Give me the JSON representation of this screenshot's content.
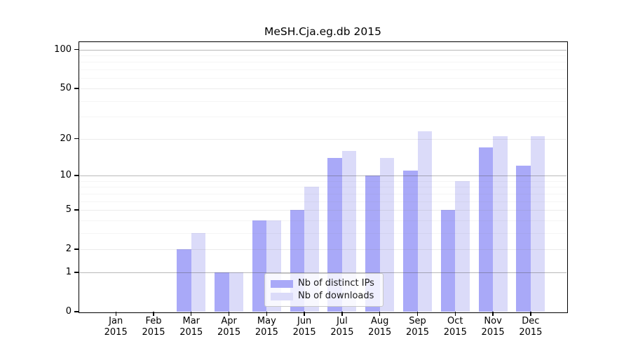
{
  "chart_data": {
    "type": "bar",
    "title": "MeSH.Cja.eg.db 2015",
    "categories": [
      "Jan",
      "Feb",
      "Mar",
      "Apr",
      "May",
      "Jun",
      "Jul",
      "Aug",
      "Sep",
      "Oct",
      "Nov",
      "Dec"
    ],
    "category_year": "2015",
    "series": [
      {
        "name": "Nb of distinct IPs",
        "color": "#a9a9f8",
        "values": [
          0,
          0,
          2,
          1,
          4,
          5,
          14,
          10,
          11,
          5,
          17,
          12
        ]
      },
      {
        "name": "Nb of downloads",
        "color": "#dbdbf9",
        "values": [
          0,
          0,
          3,
          1,
          4,
          8,
          16,
          14,
          23,
          9,
          21,
          21
        ]
      }
    ],
    "yscale": "log1p",
    "ylim": [
      0,
      113
    ],
    "y_ticks": [
      0,
      1,
      2,
      5,
      10,
      20,
      50,
      100
    ],
    "y_decade_ticks": [
      1,
      10,
      100
    ],
    "y_minor_gridlines": [
      3,
      4,
      6,
      7,
      8,
      9,
      30,
      40,
      60,
      70,
      80,
      90
    ],
    "grid": true,
    "legend_position": "bottom-center",
    "axis_color": "#000000",
    "background_color": "#ffffff"
  }
}
